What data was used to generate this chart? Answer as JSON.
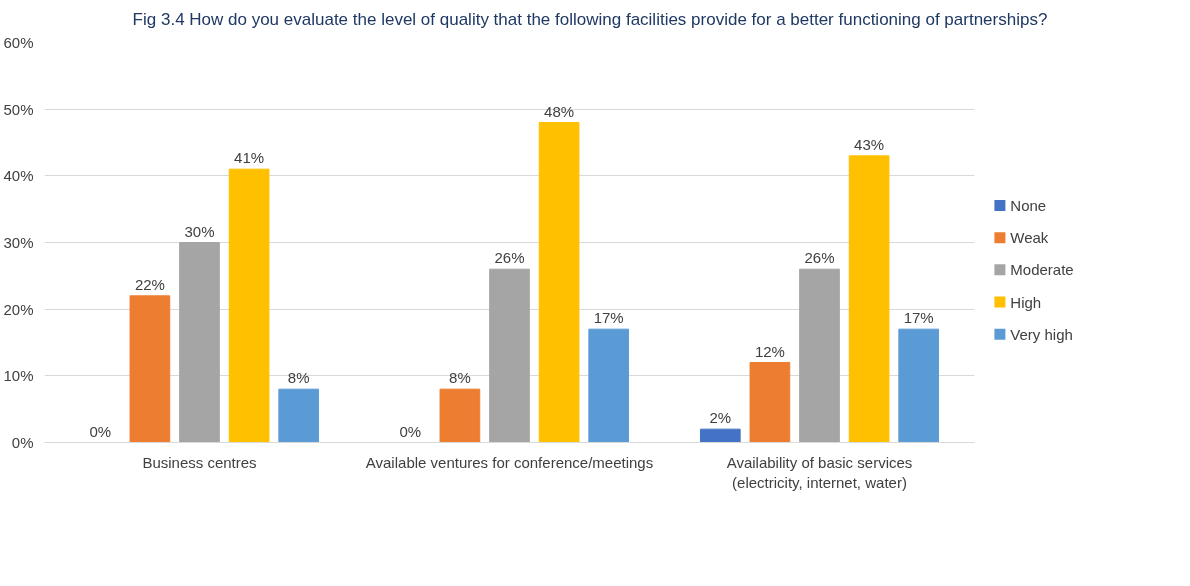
{
  "chart_data": {
    "type": "bar",
    "title": "Fig 3.4 How do you evaluate the level of quality that the following facilities provide for a better functioning of partnerships?",
    "categories": [
      "Business centres",
      "Available ventures for conference/meetings",
      "Availability of basic services (electricity, internet, water)"
    ],
    "series": [
      {
        "name": "None",
        "color": "#4472c4",
        "values": [
          0,
          0,
          2
        ],
        "value_labels": [
          "0%",
          "0%",
          "2%"
        ]
      },
      {
        "name": "Weak",
        "color": "#ed7d31",
        "values": [
          22,
          8,
          12
        ],
        "value_labels": [
          "22%",
          "8%",
          "12%"
        ]
      },
      {
        "name": "Moderate",
        "color": "#a5a5a5",
        "values": [
          30,
          26,
          26
        ],
        "value_labels": [
          "30%",
          "26%",
          "26%"
        ]
      },
      {
        "name": "High",
        "color": "#ffc000",
        "values": [
          41,
          48,
          43
        ],
        "value_labels": [
          "41%",
          "48%",
          "43%"
        ]
      },
      {
        "name": "Very high",
        "color": "#5b9bd5",
        "values": [
          8,
          17,
          17
        ],
        "value_labels": [
          "8%",
          "17%",
          "17%"
        ]
      }
    ],
    "ylim": [
      0,
      60
    ],
    "yticks": [
      {
        "value": 0,
        "label": "0%"
      },
      {
        "value": 10,
        "label": "10%"
      },
      {
        "value": 20,
        "label": "20%"
      },
      {
        "value": 30,
        "label": "30%"
      },
      {
        "value": 40,
        "label": "40%"
      },
      {
        "value": 50,
        "label": "50%"
      },
      {
        "value": 60,
        "label": "60%"
      }
    ],
    "grid": "y",
    "legend": "right"
  }
}
